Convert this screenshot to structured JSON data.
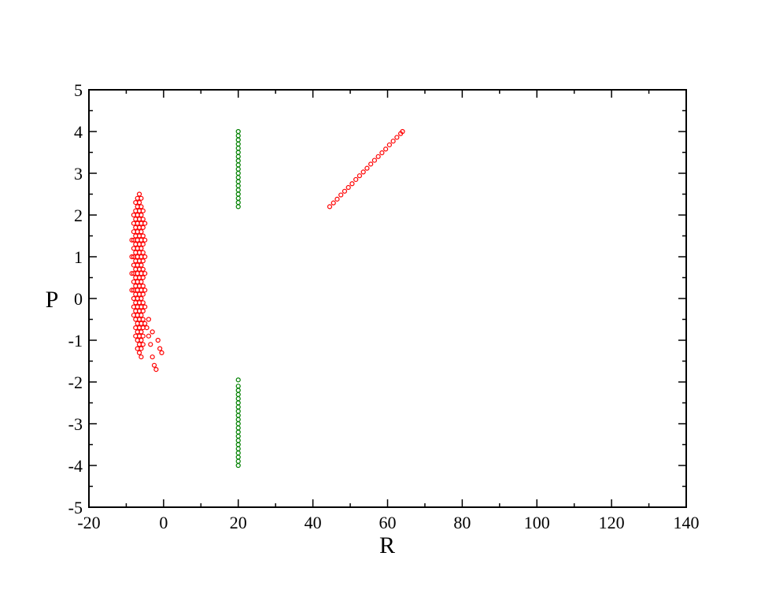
{
  "chart_data": {
    "type": "scatter",
    "xlabel": "R",
    "ylabel": "P",
    "xlim": [
      -20,
      140
    ],
    "ylim": [
      -5,
      5
    ],
    "xticks": [
      -20,
      0,
      20,
      40,
      60,
      80,
      100,
      120,
      140
    ],
    "yticks": [
      -5,
      -4,
      -3,
      -2,
      -1,
      0,
      1,
      2,
      3,
      4,
      5
    ],
    "xminorticks": [
      -10,
      10,
      30,
      50,
      70,
      90,
      110,
      130
    ],
    "yminorticks": [
      -4.5,
      -3.5,
      -2.5,
      -1.5,
      -0.5,
      0.5,
      1.5,
      2.5,
      3.5,
      4.5
    ],
    "series": [
      {
        "color": "#ff0000",
        "x": [
          -8.5,
          -8.5,
          -8.5,
          -8.5,
          -8,
          -8,
          -8,
          -8,
          -8,
          -8,
          -8,
          -8,
          -8,
          -8,
          -8,
          -8,
          -8,
          -7.5,
          -7.5,
          -7.5,
          -7.5,
          -7.5,
          -7.5,
          -7.5,
          -7.5,
          -7.5,
          -7.5,
          -7.5,
          -7.5,
          -7.5,
          -7.5,
          -7.5,
          -7.5,
          -7.5,
          -7,
          -7,
          -7,
          -7,
          -7,
          -7,
          -7,
          -7,
          -7,
          -7,
          -7,
          -7,
          -7,
          -7,
          -7,
          -7,
          -7,
          -7,
          -7,
          -6.5,
          -6.5,
          -6.5,
          -6.5,
          -6.5,
          -6.5,
          -6.5,
          -6.5,
          -6.5,
          -6.5,
          -6.5,
          -6.5,
          -6.5,
          -6.5,
          -6.5,
          -6.5,
          -6.5,
          -6.5,
          -6.5,
          -6.5,
          -6,
          -6,
          -6,
          -6,
          -6,
          -6,
          -6,
          -6,
          -6,
          -6,
          -6,
          -6,
          -6,
          -6,
          -6,
          -6,
          -6,
          -6,
          -6,
          -6,
          -5.5,
          -5.5,
          -5.5,
          -5.5,
          -5.5,
          -5.5,
          -5.5,
          -5.5,
          -5.5,
          -5.5,
          -5.5,
          -5.5,
          -5.5,
          -5.5,
          -5.5,
          -5.5,
          -5.5,
          -5,
          -5,
          -5,
          -5,
          -5,
          -5,
          -5,
          -4.5,
          -4,
          -3.5,
          -3,
          -2.5,
          -2,
          -1,
          -0.5,
          -1.5,
          -3,
          -4
        ],
        "values": [
          0.2,
          0.6,
          1.0,
          1.4,
          -0.4,
          -0.2,
          0,
          0.2,
          0.4,
          0.6,
          0.8,
          1.0,
          1.2,
          1.4,
          1.6,
          1.8,
          2.0,
          -0.9,
          -0.7,
          -0.5,
          -0.3,
          -0.1,
          0.1,
          0.3,
          0.5,
          0.7,
          0.9,
          1.1,
          1.3,
          1.5,
          1.7,
          1.9,
          2.1,
          2.3,
          -1.2,
          -1.0,
          -0.8,
          -0.6,
          -0.4,
          -0.2,
          0,
          0.2,
          0.4,
          0.6,
          0.8,
          1.0,
          1.2,
          1.4,
          1.6,
          1.8,
          2.0,
          2.2,
          2.4,
          -1.3,
          -1.1,
          -0.9,
          -0.7,
          -0.5,
          -0.3,
          -0.1,
          0.1,
          0.3,
          0.5,
          0.7,
          0.9,
          1.1,
          1.3,
          1.5,
          1.7,
          1.9,
          2.1,
          2.3,
          2.5,
          -1.4,
          -1.2,
          -1.0,
          -0.8,
          -0.6,
          -0.4,
          -0.2,
          0,
          0.2,
          0.4,
          0.6,
          0.8,
          1.0,
          1.2,
          1.4,
          1.6,
          1.8,
          2.0,
          2.2,
          2.4,
          -1.1,
          -0.9,
          -0.7,
          -0.5,
          -0.3,
          -0.1,
          0.1,
          0.3,
          0.5,
          0.7,
          0.9,
          1.1,
          1.3,
          1.5,
          1.7,
          1.9,
          2.1,
          -0.6,
          -0.2,
          0.2,
          0.6,
          1.0,
          1.4,
          1.8,
          -0.7,
          -0.9,
          -1.1,
          -1.4,
          -1.6,
          -1.7,
          -1.2,
          -1.3,
          -1.0,
          -0.8,
          -0.5
        ]
      },
      {
        "color": "#008000",
        "x": [
          20,
          20,
          20,
          20,
          20,
          20,
          20,
          20,
          20,
          20,
          20,
          20,
          20,
          20,
          20,
          20,
          20,
          20,
          20,
          20,
          20,
          20,
          20,
          20,
          20,
          20,
          20,
          20,
          20,
          20,
          20,
          20,
          20,
          20,
          20,
          20,
          20,
          20,
          20,
          20
        ],
        "values": [
          2.2,
          2.3,
          2.4,
          2.5,
          2.6,
          2.7,
          2.8,
          2.9,
          3.0,
          3.1,
          3.2,
          3.3,
          3.4,
          3.5,
          3.6,
          3.7,
          3.8,
          3.9,
          4.0,
          -1.95,
          -2.1,
          -2.2,
          -2.3,
          -2.4,
          -2.5,
          -2.6,
          -2.7,
          -2.8,
          -2.9,
          -3.0,
          -3.1,
          -3.2,
          -3.3,
          -3.4,
          -3.5,
          -3.6,
          -3.7,
          -3.8,
          -3.9,
          -4.0
        ]
      },
      {
        "color": "#ff0000",
        "x": [
          44.5,
          45.5,
          46.5,
          47.5,
          48.5,
          49.5,
          50.5,
          51.5,
          52.5,
          53.5,
          54.5,
          55.5,
          56.5,
          57.5,
          58.5,
          59.5,
          60.5,
          61.5,
          62.5,
          63.5,
          64
        ],
        "values": [
          2.2,
          2.29,
          2.38,
          2.48,
          2.57,
          2.66,
          2.75,
          2.85,
          2.94,
          3.03,
          3.12,
          3.22,
          3.31,
          3.4,
          3.49,
          3.58,
          3.68,
          3.77,
          3.86,
          3.95,
          4.0
        ]
      }
    ]
  }
}
